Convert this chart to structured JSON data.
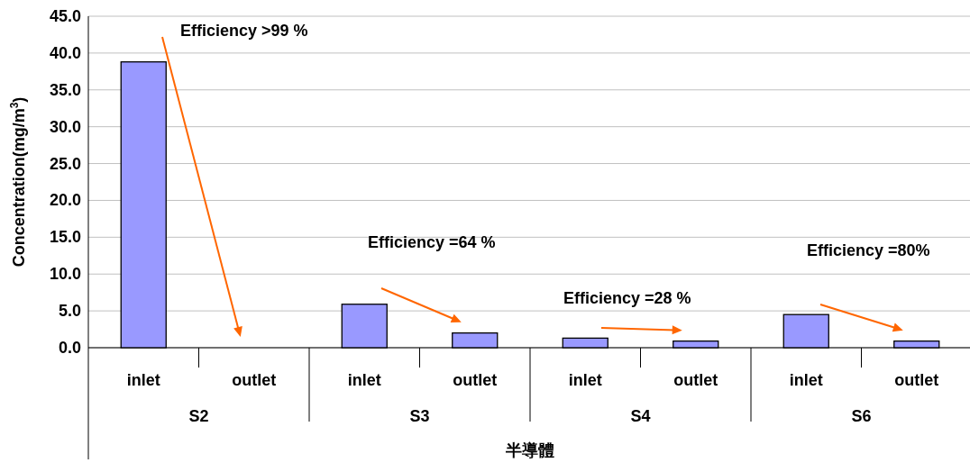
{
  "chart_data": {
    "type": "bar",
    "xlabel": "半導體",
    "ylabel": "Concentration(mg/m$^{3}$)",
    "categories": [
      "inlet",
      "outlet",
      "inlet",
      "outlet",
      "inlet",
      "outlet",
      "inlet",
      "outlet"
    ],
    "values": [
      38.8,
      0,
      5.9,
      2.0,
      1.3,
      0.9,
      4.5,
      0.9
    ],
    "color": "#9999ff",
    "ylim": [
      0,
      45
    ],
    "yticks": [
      {
        "value": 0,
        "label": "0.0"
      },
      {
        "value": 5,
        "label": "5.0"
      },
      {
        "value": 10,
        "label": "10.0"
      },
      {
        "value": 15,
        "label": "15.0"
      },
      {
        "value": 20,
        "label": "20.0"
      },
      {
        "value": 25,
        "label": "25.0"
      },
      {
        "value": 30,
        "label": "30.0"
      },
      {
        "value": 35,
        "label": "35.0"
      },
      {
        "value": 40,
        "label": "40.0"
      },
      {
        "value": 45,
        "label": "45.0"
      }
    ],
    "grid": "y",
    "annotations": [
      "Efficiency >99 %",
      "Efficiency =64 %",
      "Efficiency =28 %",
      "Efficiency =80%",
      "S2",
      "S3",
      "S4",
      "S6"
    ]
  }
}
